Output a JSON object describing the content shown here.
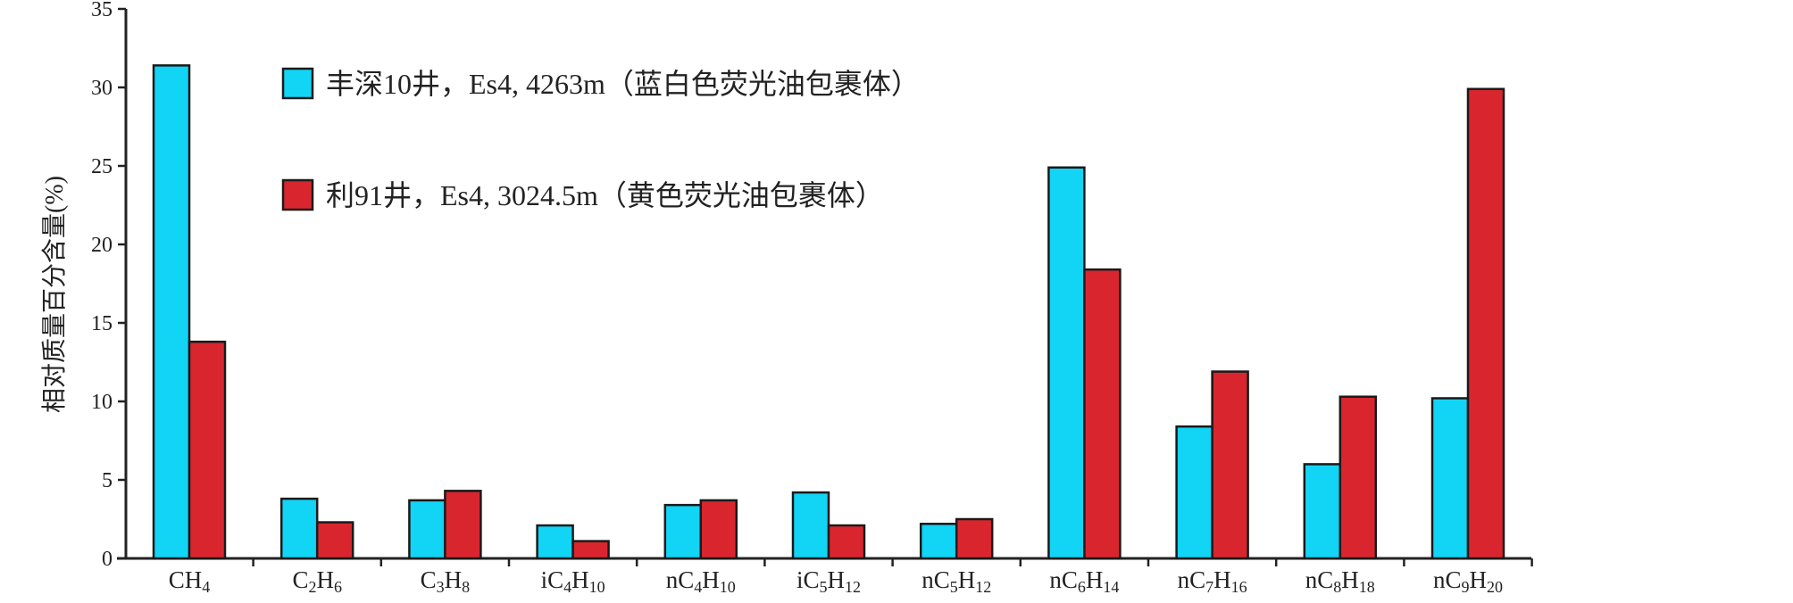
{
  "chart_data": {
    "type": "bar",
    "title": "",
    "xlabel": "",
    "ylabel": "相对质量百分含量(%)",
    "ylim": [
      0,
      35
    ],
    "yticks": [
      0,
      5,
      10,
      15,
      20,
      25,
      30,
      35
    ],
    "grid": false,
    "legend_position": "top-left",
    "categories": [
      {
        "base": "C",
        "n": "",
        "h": "4",
        "prefix": ""
      },
      {
        "base": "C",
        "n": "2",
        "h": "6",
        "prefix": ""
      },
      {
        "base": "C",
        "n": "3",
        "h": "8",
        "prefix": ""
      },
      {
        "base": "C",
        "n": "4",
        "h": "10",
        "prefix": "i"
      },
      {
        "base": "C",
        "n": "4",
        "h": "10",
        "prefix": "n"
      },
      {
        "base": "C",
        "n": "5",
        "h": "12",
        "prefix": "i"
      },
      {
        "base": "C",
        "n": "5",
        "h": "12",
        "prefix": "n"
      },
      {
        "base": "C",
        "n": "6",
        "h": "14",
        "prefix": "n"
      },
      {
        "base": "C",
        "n": "7",
        "h": "16",
        "prefix": "n"
      },
      {
        "base": "C",
        "n": "8",
        "h": "18",
        "prefix": "n"
      },
      {
        "base": "C",
        "n": "9",
        "h": "20",
        "prefix": "n"
      }
    ],
    "category_labels": [
      "CH4",
      "C2H6",
      "C3H8",
      "iC4H10",
      "nC4H10",
      "iC5H12",
      "nC5H12",
      "nC6H14",
      "nC7H16",
      "nC8H18",
      "nC9H20"
    ],
    "series": [
      {
        "name": "丰深10井，Es4, 4263m（蓝白色荧光油包裹体）",
        "color": "#12d4f5",
        "values": [
          31.4,
          3.8,
          3.7,
          2.1,
          3.4,
          4.2,
          2.2,
          24.9,
          8.4,
          6.0,
          10.2
        ]
      },
      {
        "name": "利91井，Es4, 3024.5m（黄色荧光油包裹体）",
        "color": "#d9262e",
        "values": [
          13.8,
          2.3,
          4.3,
          1.1,
          3.7,
          2.1,
          2.5,
          18.4,
          11.9,
          10.3,
          29.9
        ]
      }
    ]
  }
}
